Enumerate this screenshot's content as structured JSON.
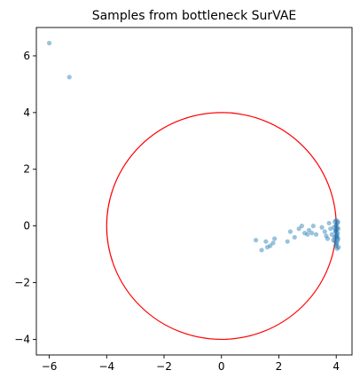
{
  "chart_data": {
    "type": "scatter",
    "title": "Samples from bottleneck SurVAE",
    "xlabel": "",
    "ylabel": "",
    "xlim": [
      -6.45,
      4.55
    ],
    "ylim": [
      -4.55,
      7.0
    ],
    "xticks": [
      -6,
      -4,
      -2,
      0,
      2,
      4
    ],
    "yticks": [
      -4,
      -2,
      0,
      2,
      4,
      6
    ],
    "grid": false,
    "legend": "none",
    "colors": {
      "points": "#1f77b4",
      "circle": "#ff0000"
    },
    "circle": {
      "center": [
        0,
        0
      ],
      "radius": 4
    },
    "series": [
      {
        "points": [
          [
            -6.0,
            6.45
          ],
          [
            -5.3,
            5.25
          ],
          [
            1.2,
            -0.5
          ],
          [
            1.4,
            -0.85
          ],
          [
            1.55,
            -0.55
          ],
          [
            1.6,
            -0.75
          ],
          [
            1.7,
            -0.7
          ],
          [
            1.8,
            -0.6
          ],
          [
            1.85,
            -0.45
          ],
          [
            2.3,
            -0.55
          ],
          [
            2.4,
            -0.2
          ],
          [
            2.55,
            -0.4
          ],
          [
            2.7,
            -0.1
          ],
          [
            2.8,
            0.0
          ],
          [
            2.9,
            -0.25
          ],
          [
            3.0,
            -0.3
          ],
          [
            3.05,
            -0.15
          ],
          [
            3.15,
            -0.25
          ],
          [
            3.2,
            0.0
          ],
          [
            3.3,
            -0.3
          ],
          [
            3.5,
            -0.05
          ],
          [
            3.6,
            -0.2
          ],
          [
            3.65,
            -0.35
          ],
          [
            3.7,
            -0.45
          ],
          [
            3.75,
            0.1
          ],
          [
            3.8,
            -0.1
          ],
          [
            3.85,
            -0.3
          ],
          [
            3.9,
            -0.5
          ],
          [
            3.95,
            0.15
          ],
          [
            3.97,
            -0.2
          ],
          [
            4.0,
            -0.4
          ],
          [
            4.0,
            0.05
          ],
          [
            4.02,
            -0.6
          ],
          [
            4.05,
            -0.25
          ],
          [
            4.08,
            -0.75
          ],
          [
            4.0,
            0.2
          ],
          [
            4.03,
            -0.05
          ],
          [
            3.98,
            -0.15
          ],
          [
            4.06,
            -0.45
          ],
          [
            4.0,
            -0.35
          ],
          [
            4.04,
            0.1
          ],
          [
            3.96,
            -0.55
          ],
          [
            4.01,
            -0.65
          ],
          [
            4.07,
            -0.1
          ],
          [
            3.99,
            0.0
          ],
          [
            4.02,
            -0.3
          ],
          [
            3.94,
            -0.4
          ],
          [
            4.05,
            -0.5
          ],
          [
            4.0,
            -0.2
          ],
          [
            4.03,
            -0.8
          ],
          [
            3.92,
            -0.05
          ],
          [
            4.06,
            0.15
          ],
          [
            3.98,
            -0.7
          ],
          [
            4.01,
            -0.12
          ],
          [
            4.04,
            -0.38
          ]
        ]
      }
    ]
  }
}
